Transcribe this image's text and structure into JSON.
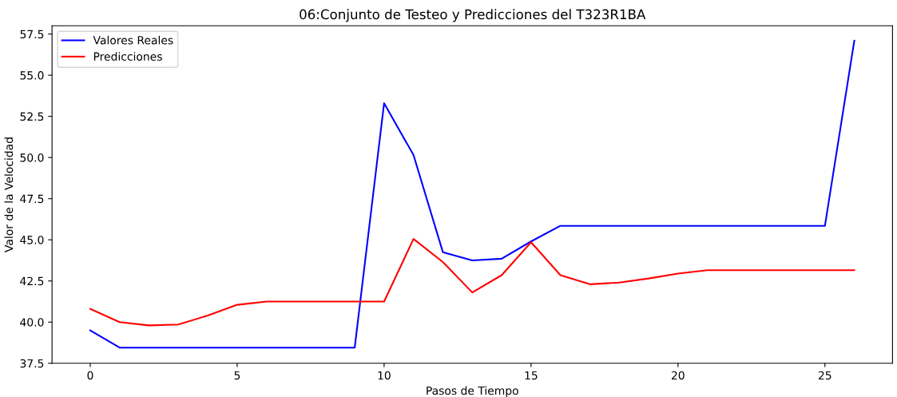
{
  "chart_data": {
    "type": "line",
    "title": "06:Conjunto de Testeo y Predicciones del T323R1BA",
    "xlabel": "Pasos de Tiempo",
    "ylabel": "Valor de la Velocidad",
    "x": [
      0,
      1,
      2,
      3,
      4,
      5,
      6,
      7,
      8,
      9,
      10,
      11,
      12,
      13,
      14,
      15,
      16,
      17,
      18,
      19,
      20,
      21,
      22,
      23,
      24,
      25,
      26
    ],
    "series": [
      {
        "name": "Valores Reales",
        "color": "#0000ff",
        "values": [
          39.5,
          38.45,
          38.45,
          38.45,
          38.45,
          38.45,
          38.45,
          38.45,
          38.45,
          38.45,
          53.3,
          50.15,
          44.25,
          43.75,
          43.85,
          44.9,
          45.85,
          45.85,
          45.85,
          45.85,
          45.85,
          45.85,
          45.85,
          45.85,
          45.85,
          45.85,
          57.1
        ]
      },
      {
        "name": "Predicciones",
        "color": "#ff0000",
        "values": [
          40.8,
          40.0,
          39.8,
          39.85,
          40.4,
          41.05,
          41.25,
          41.25,
          41.25,
          41.25,
          41.25,
          45.05,
          43.65,
          41.8,
          42.85,
          44.85,
          42.85,
          42.3,
          42.4,
          42.65,
          42.95,
          43.15,
          43.15,
          43.15,
          43.15,
          43.15,
          43.15
        ]
      }
    ],
    "xlim": [
      -1.3,
      27.3
    ],
    "ylim": [
      37.5,
      58.0
    ],
    "xticks": [
      0,
      5,
      10,
      15,
      20,
      25
    ],
    "yticks": [
      {
        "value": 37.5,
        "label": "37.5"
      },
      {
        "value": 40,
        "label": "40.0"
      },
      {
        "value": 42.5,
        "label": "42.5"
      },
      {
        "value": 45,
        "label": "45.0"
      },
      {
        "value": 47.5,
        "label": "47.5"
      },
      {
        "value": 50,
        "label": "50.0"
      },
      {
        "value": 52.5,
        "label": "52.5"
      },
      {
        "value": 55,
        "label": "55.0"
      },
      {
        "value": 57.5,
        "label": "57.5"
      }
    ],
    "grid": false,
    "legend": "top left"
  }
}
